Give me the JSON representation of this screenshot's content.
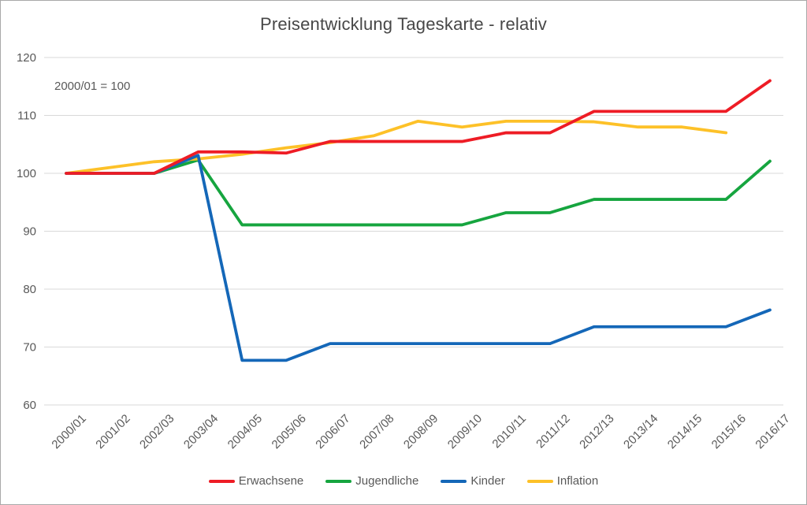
{
  "chart": {
    "title": "Preisentwicklung Tageskarte - relativ",
    "annotation": "2000/01 = 100"
  },
  "chart_data": {
    "type": "line",
    "title": "Preisentwicklung Tageskarte - relativ",
    "annotation": "2000/01 = 100",
    "categories": [
      "2000/01",
      "2001/02",
      "2002/03",
      "2003/04",
      "2004/05",
      "2005/06",
      "2006/07",
      "2007/08",
      "2008/09",
      "2009/10",
      "2010/11",
      "2011/12",
      "2012/13",
      "2013/14",
      "2014/15",
      "2015/16",
      "2016/17"
    ],
    "series": [
      {
        "name": "Erwachsene",
        "color": "#ee1c25",
        "values": [
          100,
          100,
          100,
          103.7,
          103.7,
          103.5,
          105.5,
          105.5,
          105.5,
          105.5,
          107,
          107,
          110.7,
          110.7,
          110.7,
          110.7,
          116
        ]
      },
      {
        "name": "Jugendliche",
        "color": "#16a53f",
        "values": [
          100,
          100,
          100,
          102.3,
          91.1,
          91.1,
          91.1,
          91.1,
          91.1,
          91.1,
          93.2,
          93.2,
          95.5,
          95.5,
          95.5,
          95.5,
          102.1
        ]
      },
      {
        "name": "Kinder",
        "color": "#1467b8",
        "values": [
          100,
          100,
          100,
          103.1,
          67.7,
          67.7,
          70.6,
          70.6,
          70.6,
          70.6,
          70.6,
          70.6,
          73.5,
          73.5,
          73.5,
          73.5,
          76.4
        ]
      },
      {
        "name": "Inflation",
        "color": "#fdc128",
        "values": [
          100,
          101,
          102,
          102.5,
          103.3,
          104.4,
          105.3,
          106.5,
          109,
          108,
          109,
          109,
          108.9,
          108,
          108,
          107,
          null
        ]
      }
    ],
    "draw_order": [
      1,
      3,
      2,
      0
    ],
    "ylim": [
      60,
      120
    ],
    "yticks": [
      60,
      70,
      80,
      90,
      100,
      110,
      120
    ],
    "grid": true,
    "legend_position": "bottom",
    "xlabel": "",
    "ylabel": ""
  },
  "style": {
    "grid_color": "#d9d9d9",
    "axis_text_color": "#595959",
    "title_color": "#474747",
    "line_width": 3.8
  }
}
